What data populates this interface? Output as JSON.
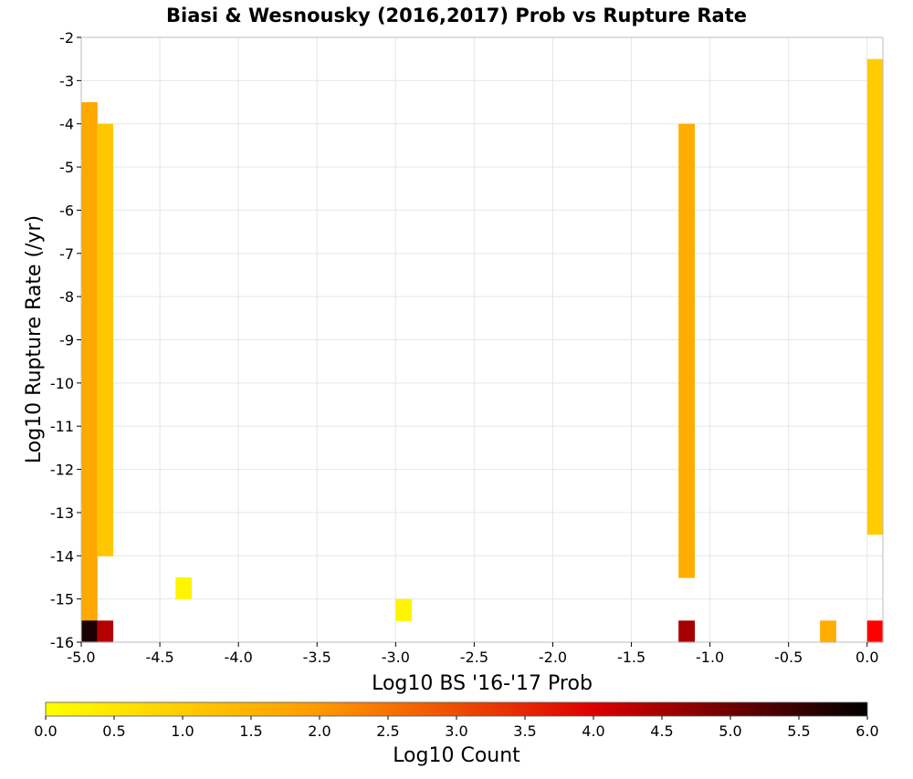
{
  "chart_data": {
    "type": "heatmap",
    "title": "Biasi & Wesnousky (2016,2017) Prob vs Rupture Rate",
    "xlabel": "Log10 BS '16-'17 Prob",
    "ylabel": "Log10 Rupture Rate (/yr)",
    "colorbar_label": "Log10 Count",
    "xlim": [
      -5.0,
      0.1
    ],
    "ylim": [
      -16,
      -2
    ],
    "x_bin_width": 0.1,
    "y_bin_width": 0.5,
    "x_ticks": [
      -5.0,
      -4.5,
      -4.0,
      -3.5,
      -3.0,
      -2.5,
      -2.0,
      -1.5,
      -1.0,
      -0.5,
      0.0
    ],
    "x_tick_labels": [
      "-5.0",
      "-4.5",
      "-4.0",
      "-3.5",
      "-3.0",
      "-2.5",
      "-2.0",
      "-1.5",
      "-1.0",
      "-0.5",
      "0.0"
    ],
    "y_ticks": [
      -2,
      -3,
      -4,
      -5,
      -6,
      -7,
      -8,
      -9,
      -10,
      -11,
      -12,
      -13,
      -14,
      -15,
      -16
    ],
    "y_tick_labels": [
      "-2",
      "-3",
      "-4",
      "-5",
      "-6",
      "-7",
      "-8",
      "-9",
      "-10",
      "-11",
      "-12",
      "-13",
      "-14",
      "-15",
      "-16"
    ],
    "colorbar_range": [
      0,
      6
    ],
    "colorbar_ticks": [
      0.0,
      0.5,
      1.0,
      1.5,
      2.0,
      2.5,
      3.0,
      3.5,
      4.0,
      4.5,
      5.0,
      5.5,
      6.0
    ],
    "colorbar_tick_labels": [
      "0.0",
      "0.5",
      "1.0",
      "1.5",
      "2.0",
      "2.5",
      "3.0",
      "3.5",
      "4.0",
      "4.5",
      "5.0",
      "5.5",
      "6.0"
    ],
    "colormap": [
      "#ffff00",
      "#ff9900",
      "#ff0000",
      "#000000"
    ],
    "grid": true,
    "legend": "colorbar-bottom",
    "cells": [
      {
        "x": -5.0,
        "y_min": -15.5,
        "y_max": -3.5,
        "log10_count": 1.7
      },
      {
        "x": -5.0,
        "y_min": -16.0,
        "y_max": -15.5,
        "log10_count": 5.8
      },
      {
        "x": -4.9,
        "y_min": -14.0,
        "y_max": -4.0,
        "log10_count": 1.1
      },
      {
        "x": -4.9,
        "y_min": -16.0,
        "y_max": -15.5,
        "log10_count": 4.6
      },
      {
        "x": -3.0,
        "y_min": -15.5,
        "y_max": -15.0,
        "log10_count": 0.2
      },
      {
        "x": -4.4,
        "y_min": -15.0,
        "y_max": -14.5,
        "log10_count": 0.2
      },
      {
        "x": -1.2,
        "y_min": -14.5,
        "y_max": -4.0,
        "log10_count": 1.6
      },
      {
        "x": -1.2,
        "y_min": -16.0,
        "y_max": -15.5,
        "log10_count": 4.7
      },
      {
        "x": -0.3,
        "y_min": -16.0,
        "y_max": -15.5,
        "log10_count": 1.6
      },
      {
        "x": 0.0,
        "y_min": -13.5,
        "y_max": -2.5,
        "log10_count": 1.0
      },
      {
        "x": 0.0,
        "y_min": -16.0,
        "y_max": -15.5,
        "log10_count": 4.0
      }
    ]
  }
}
